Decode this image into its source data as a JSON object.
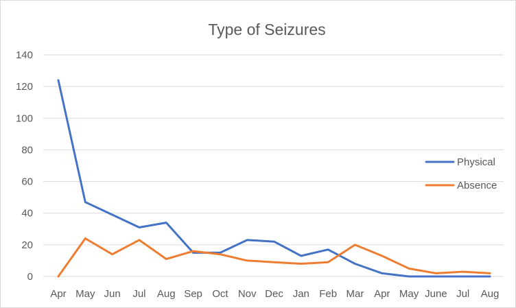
{
  "chart_data": {
    "type": "line",
    "title": "Type of Seizures",
    "xlabel": "",
    "ylabel": "",
    "categories": [
      "Apr",
      "May",
      "Jun",
      "Jul",
      "Aug",
      "Sep",
      "Oct",
      "Nov",
      "Dec",
      "Jan",
      "Feb",
      "Mar",
      "Apr",
      "May",
      "June",
      "Jul",
      "Aug"
    ],
    "ylim": [
      0,
      140
    ],
    "yticks": [
      0,
      20,
      40,
      60,
      80,
      100,
      120,
      140
    ],
    "grid": true,
    "legend_position": "right",
    "series": [
      {
        "name": "Physical",
        "color": "#4472c4",
        "values": [
          124,
          47,
          39,
          31,
          34,
          15,
          15,
          23,
          22,
          13,
          17,
          8,
          2,
          0,
          0,
          0,
          0
        ]
      },
      {
        "name": "Absence",
        "color": "#ed7d31",
        "values": [
          0,
          24,
          14,
          23,
          11,
          16,
          14,
          10,
          9,
          8,
          9,
          20,
          13,
          5,
          2,
          3,
          2
        ]
      }
    ]
  }
}
